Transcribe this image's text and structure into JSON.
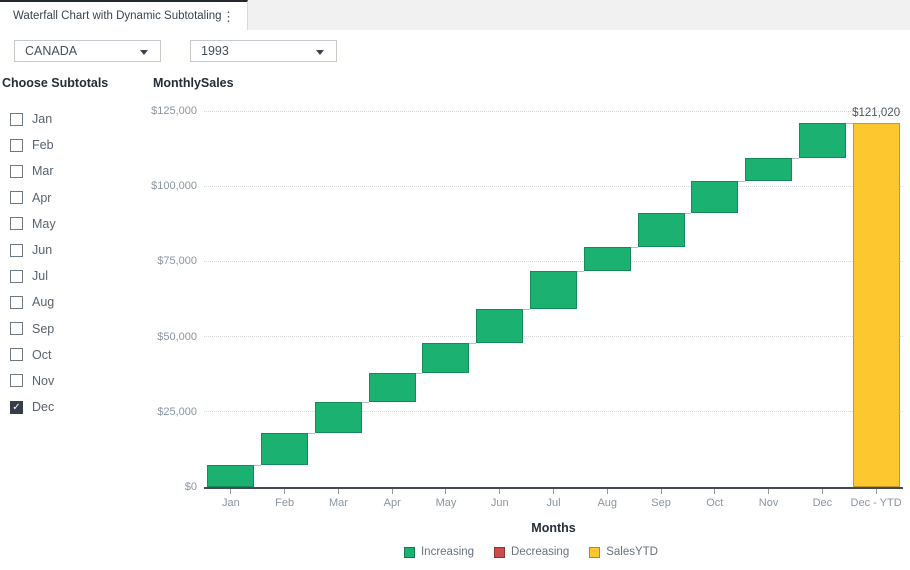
{
  "tab": {
    "title": "Waterfall Chart with Dynamic Subtotaling"
  },
  "filters": {
    "region": {
      "value": "CANADA"
    },
    "year": {
      "value": "1993"
    }
  },
  "subtotals_panel": {
    "title": "Choose Subtotals",
    "items": [
      {
        "label": "Jan",
        "checked": false
      },
      {
        "label": "Feb",
        "checked": false
      },
      {
        "label": "Mar",
        "checked": false
      },
      {
        "label": "Apr",
        "checked": false
      },
      {
        "label": "May",
        "checked": false
      },
      {
        "label": "Jun",
        "checked": false
      },
      {
        "label": "Jul",
        "checked": false
      },
      {
        "label": "Aug",
        "checked": false
      },
      {
        "label": "Sep",
        "checked": false
      },
      {
        "label": "Oct",
        "checked": false
      },
      {
        "label": "Nov",
        "checked": false
      },
      {
        "label": "Dec",
        "checked": true
      }
    ]
  },
  "chart_data": {
    "type": "bar",
    "subtype": "waterfall",
    "title": "MonthlySales",
    "xlabel": "Months",
    "categories": [
      "Jan",
      "Feb",
      "Mar",
      "Apr",
      "May",
      "Jun",
      "Jul",
      "Aug",
      "Sep",
      "Oct",
      "Nov",
      "Dec",
      "Dec - YTD"
    ],
    "increments": [
      7300,
      10490,
      10420,
      9830,
      9860,
      11390,
      12510,
      8070,
      11080,
      10720,
      7870,
      11480
    ],
    "cumulative": [
      7300,
      17790,
      28210,
      38040,
      47900,
      59290,
      71800,
      79870,
      90950,
      101670,
      109540,
      121020
    ],
    "total": {
      "category": "Dec - YTD",
      "value": 121020,
      "label": "$121,020"
    },
    "ylim": [
      0,
      125000
    ],
    "yticks": [
      {
        "value": 0,
        "label": "$0"
      },
      {
        "value": 25000,
        "label": "$25,000"
      },
      {
        "value": 50000,
        "label": "$50,000"
      },
      {
        "value": 75000,
        "label": "$75,000"
      },
      {
        "value": 100000,
        "label": "$100,000"
      },
      {
        "value": 125000,
        "label": "$125,000"
      }
    ],
    "grid": "horizontal-dotted",
    "legend": {
      "position": "bottom-center",
      "entries": [
        {
          "label": "Increasing",
          "color": "#1BB271"
        },
        {
          "label": "Decreasing",
          "color": "#CC4C4C"
        },
        {
          "label": "SalesYTD",
          "color": "#FDC72F"
        }
      ]
    }
  }
}
